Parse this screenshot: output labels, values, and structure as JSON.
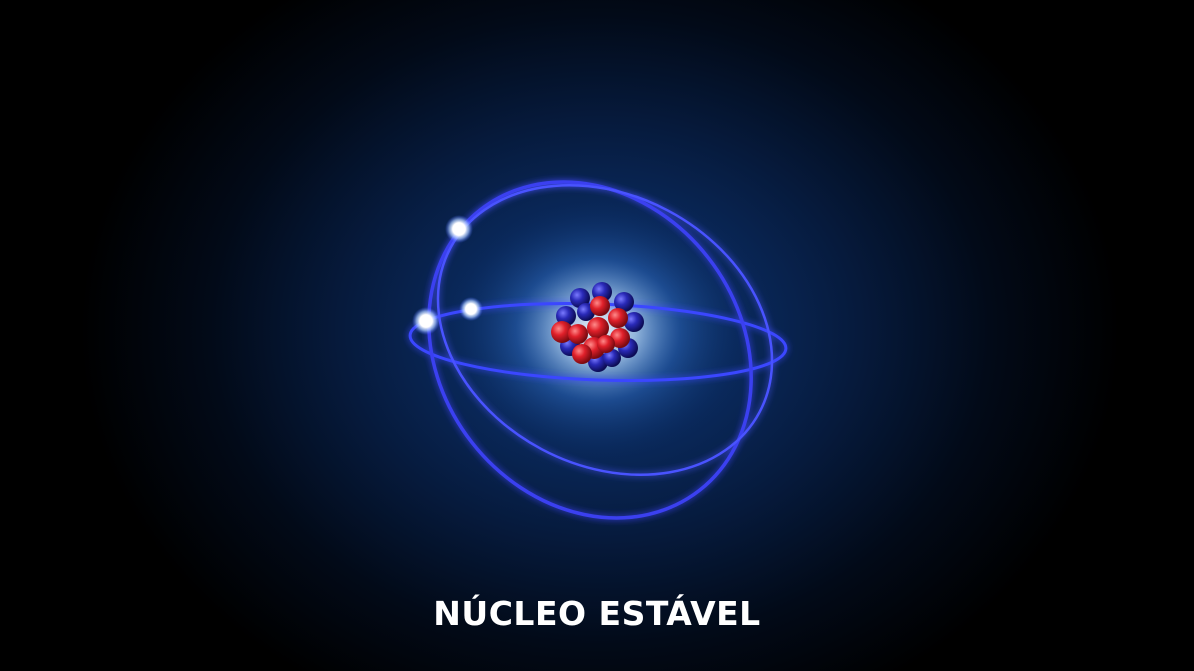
{
  "caption": "NÚCLEO ESTÁVEL",
  "colors": {
    "background_center": "#0f3a7a",
    "orbit": "#3a46ff",
    "orbit_glow": "#2230ff",
    "proton": "#e0202a",
    "neutron": "#2a2ab8",
    "electron": "#ffffff",
    "text": "#ffffff"
  },
  "atom": {
    "orbit_count": 3,
    "electron_count": 3
  }
}
